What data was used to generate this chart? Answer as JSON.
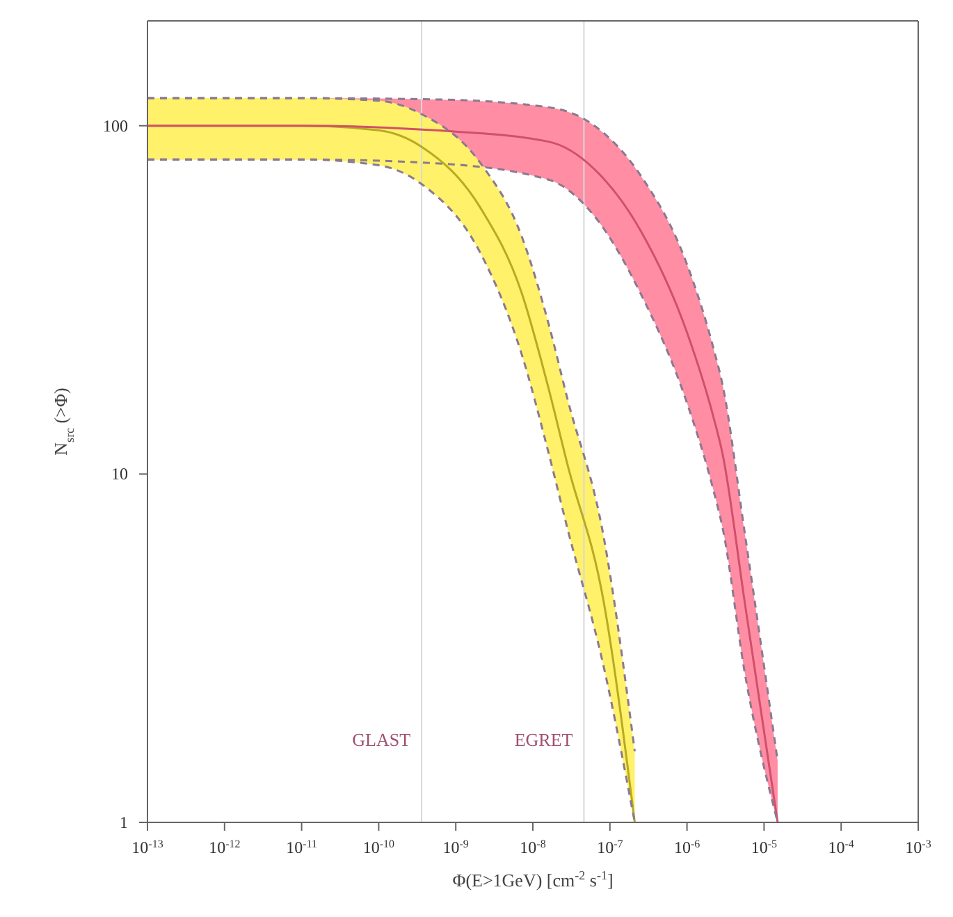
{
  "chart_data": {
    "type": "line",
    "xlabel": "Φ(E>1GeV) [cm$^{-2}$ s$^{-1}$]",
    "ylabel": "N$_{src}$ (>Φ)",
    "log": "xy",
    "xlim": [
      1e-13,
      0.001
    ],
    "xticks": [
      {
        "value": 1e-13,
        "label": "10$^{-13}$"
      },
      {
        "value": 1e-12,
        "label": "10$^{-12}$"
      },
      {
        "value": 1e-11,
        "label": "10$^{-11}$"
      },
      {
        "value": 1e-10,
        "label": "10$^{-10}$"
      },
      {
        "value": 1e-09,
        "label": "10$^{-9}$"
      },
      {
        "value": 1e-08,
        "label": "10$^{-8}$"
      },
      {
        "value": 1e-07,
        "label": "10$^{-7}$"
      },
      {
        "value": 1e-06,
        "label": "10$^{-6}$"
      },
      {
        "value": 1e-05,
        "label": "10$^{-5}$"
      },
      {
        "value": 0.0001,
        "label": "10$^{-4}$"
      },
      {
        "value": 0.001,
        "label": "10$^{-3}$"
      }
    ],
    "ylim": [
      1,
      200
    ],
    "yticks": [
      1,
      10,
      100
    ],
    "grid": false,
    "legend": false,
    "marker": "none",
    "line_style": "solid",
    "series": [
      {
        "color": "#b8aa22",
        "x": [
          1e-13,
          1e-11,
          1e-10,
          3.6e-10,
          2.1e-09,
          7.2e-09,
          1.6e-08,
          2.8e-08,
          8.3e-08,
          2.1e-07
        ],
        "values": [
          100,
          100,
          97,
          87,
          58,
          33,
          17.6,
          10.7,
          4.3,
          1
        ],
        "upper": [
          120,
          120,
          118,
          108,
          78,
          48,
          27,
          16.5,
          6.6,
          1.6
        ],
        "lower": [
          80,
          80,
          77,
          68,
          43,
          22,
          11.5,
          7,
          2.8,
          1
        ]
      },
      {
        "color": "#d0506a",
        "x": [
          1e-13,
          1e-11,
          5.5e-10,
          1.6e-08,
          6.3e-08,
          2.5e-07,
          1e-06,
          2.2e-06,
          2.9e-06,
          5.6e-06,
          1.5e-05
        ],
        "values": [
          100,
          100,
          97,
          90,
          75,
          50,
          25.5,
          14.6,
          11.4,
          4.3,
          1
        ],
        "upper": [
          120,
          120,
          119,
          113,
          100,
          72,
          40,
          23,
          18,
          6.8,
          1.5
        ],
        "lower": [
          80,
          80,
          78,
          70,
          55,
          33,
          16,
          9,
          7,
          2.7,
          1
        ]
      },
      {
        "color": "#8a7a90",
        "line_style": "dashed",
        "x": [
          1e-13,
          1e-11,
          1e-10,
          3.6e-10,
          2.1e-09,
          7.2e-09,
          1.6e-08,
          2.8e-08,
          8.3e-08,
          2.1e-07
        ],
        "values": [
          120,
          120,
          118,
          108,
          78,
          48,
          27,
          16.5,
          6.6,
          1.6
        ]
      },
      {
        "color": "#8a7a90",
        "line_style": "dashed",
        "x": [
          1e-13,
          1e-11,
          1e-10,
          3.6e-10,
          2.1e-09,
          7.2e-09,
          1.6e-08,
          2.8e-08,
          8.3e-08,
          2.1e-07
        ],
        "values": [
          80,
          80,
          77,
          68,
          43,
          22,
          11.5,
          7,
          2.8,
          1
        ]
      },
      {
        "color": "#8a7a90",
        "line_style": "dashed",
        "x": [
          1e-13,
          1e-11,
          5.5e-10,
          1.6e-08,
          6.3e-08,
          2.5e-07,
          1e-06,
          2.2e-06,
          2.9e-06,
          5.6e-06,
          1.5e-05
        ],
        "values": [
          120,
          120,
          119,
          113,
          100,
          72,
          40,
          23,
          18,
          6.8,
          1.5
        ]
      },
      {
        "color": "#8a7a90",
        "line_style": "dashed",
        "x": [
          1e-13,
          1e-11,
          5.5e-10,
          1.6e-08,
          6.3e-08,
          2.5e-07,
          1e-06,
          2.2e-06,
          2.9e-06,
          5.6e-06,
          1.5e-05
        ],
        "values": [
          80,
          80,
          78,
          70,
          55,
          33,
          16,
          9,
          7,
          2.7,
          1
        ]
      }
    ],
    "ref_lines": [
      {
        "axis": "x",
        "value": 3.6e-10,
        "label": "GLAST",
        "color": "#d8d8d8"
      },
      {
        "axis": "x",
        "value": 4.6e-08,
        "label": "EGRET",
        "color": "#d8d8d8"
      }
    ]
  }
}
